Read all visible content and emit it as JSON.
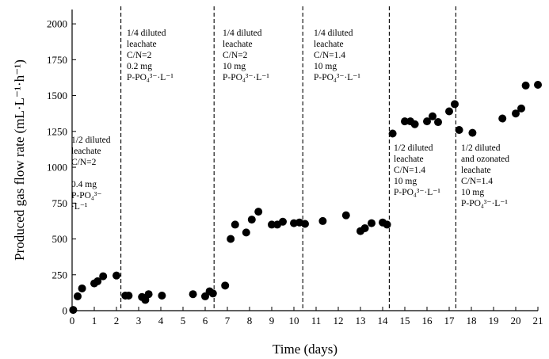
{
  "chart_data": {
    "type": "scatter",
    "title": "",
    "xlabel": "Time (days)",
    "ylabel": "Produced gas flow rate (mL·L⁻¹·h⁻¹)",
    "xlim": [
      0,
      21
    ],
    "ylim": [
      0,
      2100
    ],
    "xticks": [
      0,
      1,
      2,
      3,
      4,
      5,
      6,
      7,
      8,
      9,
      10,
      11,
      12,
      13,
      14,
      15,
      16,
      17,
      18,
      19,
      20,
      21
    ],
    "yticks": [
      0,
      250,
      500,
      750,
      1000,
      1250,
      1500,
      1750,
      2000
    ],
    "grid": false,
    "legend": "none",
    "marker_color": "#000000",
    "dividers": [
      2.2,
      6.4,
      10.4,
      14.3,
      17.3
    ],
    "annotations": [
      {
        "lines": [
          "1/2 diluted",
          "leachate",
          "C/N=2",
          "",
          "0.4 mg",
          "P-PO₄³⁻",
          "·L⁻¹"
        ]
      },
      {
        "lines": [
          "1/4 diluted",
          "leachate",
          "C/N=2",
          "0.2 mg",
          "P-PO₄³⁻·L⁻¹"
        ]
      },
      {
        "lines": [
          "1/4 diluted",
          "leachate",
          "C/N=2",
          "10 mg",
          "P-PO₄³⁻·L⁻¹"
        ]
      },
      {
        "lines": [
          "1/4 diluted",
          "leachate",
          "C/N=1.4",
          "10 mg",
          "P-PO₄³⁻·L⁻¹"
        ]
      },
      {
        "lines": [
          "1/2 diluted",
          "leachate",
          "C/N=1.4",
          "10 mg",
          "P-PO₄³⁻·L⁻¹"
        ]
      },
      {
        "lines": [
          "1/2 diluted",
          "and ozonated",
          "leachate",
          "C/N=1.4",
          "10 mg",
          "P-PO₄³⁻·L⁻¹"
        ]
      }
    ],
    "points": [
      {
        "x": 0.05,
        "y": 5
      },
      {
        "x": 0.25,
        "y": 100
      },
      {
        "x": 0.45,
        "y": 155
      },
      {
        "x": 1.0,
        "y": 190
      },
      {
        "x": 1.15,
        "y": 205
      },
      {
        "x": 1.4,
        "y": 240
      },
      {
        "x": 2.0,
        "y": 245
      },
      {
        "x": 2.4,
        "y": 105
      },
      {
        "x": 2.55,
        "y": 105
      },
      {
        "x": 3.15,
        "y": 95
      },
      {
        "x": 3.3,
        "y": 75
      },
      {
        "x": 3.45,
        "y": 115
      },
      {
        "x": 4.05,
        "y": 105
      },
      {
        "x": 5.45,
        "y": 115
      },
      {
        "x": 6.0,
        "y": 100
      },
      {
        "x": 6.2,
        "y": 135
      },
      {
        "x": 6.35,
        "y": 120
      },
      {
        "x": 6.9,
        "y": 175
      },
      {
        "x": 7.15,
        "y": 500
      },
      {
        "x": 7.35,
        "y": 600
      },
      {
        "x": 7.85,
        "y": 545
      },
      {
        "x": 8.1,
        "y": 635
      },
      {
        "x": 8.4,
        "y": 690
      },
      {
        "x": 9.0,
        "y": 600
      },
      {
        "x": 9.25,
        "y": 600
      },
      {
        "x": 9.5,
        "y": 620
      },
      {
        "x": 10.0,
        "y": 610
      },
      {
        "x": 10.25,
        "y": 615
      },
      {
        "x": 10.5,
        "y": 605
      },
      {
        "x": 11.3,
        "y": 625
      },
      {
        "x": 12.35,
        "y": 665
      },
      {
        "x": 13.0,
        "y": 555
      },
      {
        "x": 13.2,
        "y": 575
      },
      {
        "x": 13.5,
        "y": 610
      },
      {
        "x": 14.0,
        "y": 615
      },
      {
        "x": 14.2,
        "y": 600
      },
      {
        "x": 14.45,
        "y": 1235
      },
      {
        "x": 15.0,
        "y": 1320
      },
      {
        "x": 15.25,
        "y": 1320
      },
      {
        "x": 15.45,
        "y": 1300
      },
      {
        "x": 16.0,
        "y": 1320
      },
      {
        "x": 16.25,
        "y": 1355
      },
      {
        "x": 16.5,
        "y": 1315
      },
      {
        "x": 17.0,
        "y": 1390
      },
      {
        "x": 17.25,
        "y": 1440
      },
      {
        "x": 17.45,
        "y": 1260
      },
      {
        "x": 18.05,
        "y": 1240
      },
      {
        "x": 19.4,
        "y": 1340
      },
      {
        "x": 20.0,
        "y": 1375
      },
      {
        "x": 20.25,
        "y": 1410
      },
      {
        "x": 20.45,
        "y": 1570
      },
      {
        "x": 21.0,
        "y": 1575
      }
    ]
  }
}
